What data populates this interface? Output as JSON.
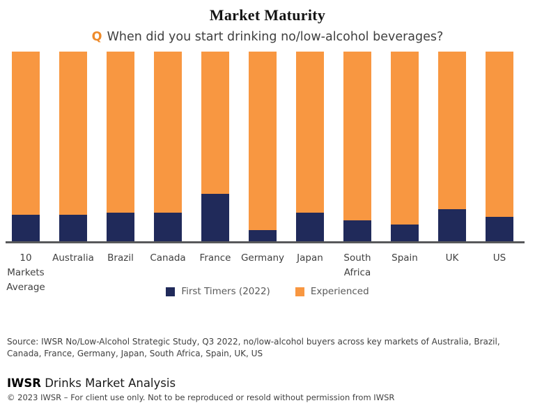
{
  "title": "Market Maturity",
  "question": {
    "q_label": "Q",
    "text": "When did you start drinking no/low-alcohol beverages?"
  },
  "colors": {
    "first_timers_navy": "#202a5a",
    "experienced_orange": "#f89741",
    "q_orange": "#ee8a2a",
    "axis_gray": "#58595b"
  },
  "chart_data": {
    "type": "bar",
    "stacked": true,
    "unit": "percent_of_total",
    "title": "Market Maturity",
    "xlabel": "",
    "ylabel": "",
    "ylim": [
      0,
      100
    ],
    "grid": false,
    "legend_position": "bottom",
    "categories": [
      "10 Markets Average",
      "Australia",
      "Brazil",
      "Canada",
      "France",
      "Germany",
      "Japan",
      "South Africa",
      "Spain",
      "UK",
      "US"
    ],
    "series": [
      {
        "name": "First Timers (2022)",
        "color": "#202a5a",
        "values": [
          14,
          14,
          15,
          15,
          25,
          6,
          15,
          11,
          9,
          17,
          13
        ]
      },
      {
        "name": "Experienced",
        "color": "#f89741",
        "values": [
          86,
          86,
          85,
          85,
          75,
          94,
          85,
          89,
          91,
          83,
          87
        ]
      }
    ]
  },
  "source": "Source: IWSR No/Low-Alcohol Strategic Study, Q3 2022, no/low-alcohol buyers across key markets of Australia, Brazil, Canada, France, Germany, Japan, South Africa, Spain, UK, US",
  "footer": {
    "brand_bold": "IWSR",
    "brand_rest": "Drinks Market Analysis",
    "copyright": "© 2023 IWSR – For client use only. Not to be reproduced or resold without permission from IWSR"
  }
}
